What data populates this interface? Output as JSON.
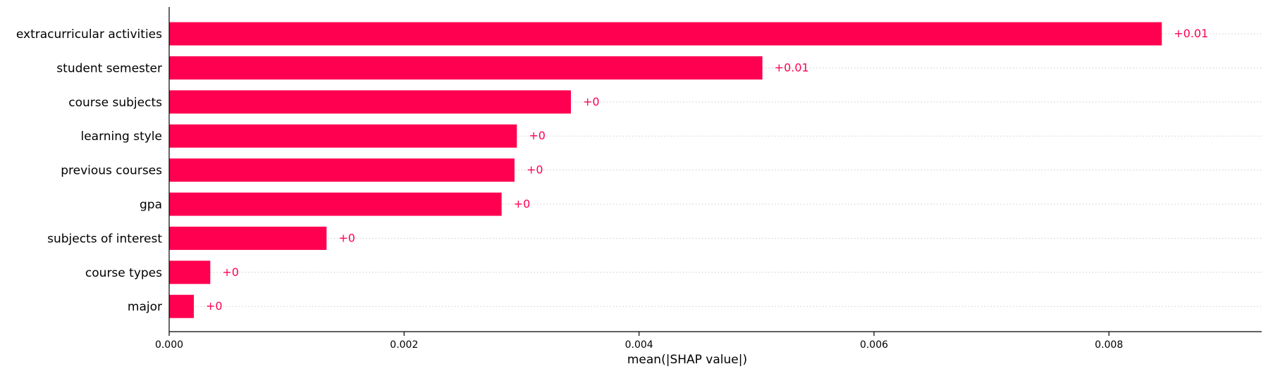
{
  "chart_data": {
    "type": "bar",
    "orientation": "horizontal",
    "title": "",
    "xlabel": "mean(|SHAP value|)",
    "ylabel": "",
    "categories": [
      "extracurricular activities",
      "student semester",
      "course subjects",
      "learning style",
      "previous courses",
      "gpa",
      "subjects of interest",
      "course types",
      "major"
    ],
    "values": [
      0.00845,
      0.00505,
      0.00342,
      0.00296,
      0.00294,
      0.00283,
      0.00134,
      0.00035,
      0.00021
    ],
    "value_labels": [
      "+0.01",
      "+0.01",
      "+0",
      "+0",
      "+0",
      "+0",
      "+0",
      "+0",
      "+0"
    ],
    "xlim": [
      0,
      0.0093
    ],
    "xticks": [
      0,
      0.002,
      0.004,
      0.006,
      0.008
    ],
    "xtick_labels": [
      "0.000",
      "0.002",
      "0.004",
      "0.006",
      "0.008"
    ],
    "grid": "dotted horizontal lines behind bars",
    "legend": "none",
    "colors": {
      "bar": "#ff0051",
      "value_label": "#ff0051",
      "axis": "#000000",
      "grid": "#cccccc",
      "text": "#000000"
    }
  }
}
